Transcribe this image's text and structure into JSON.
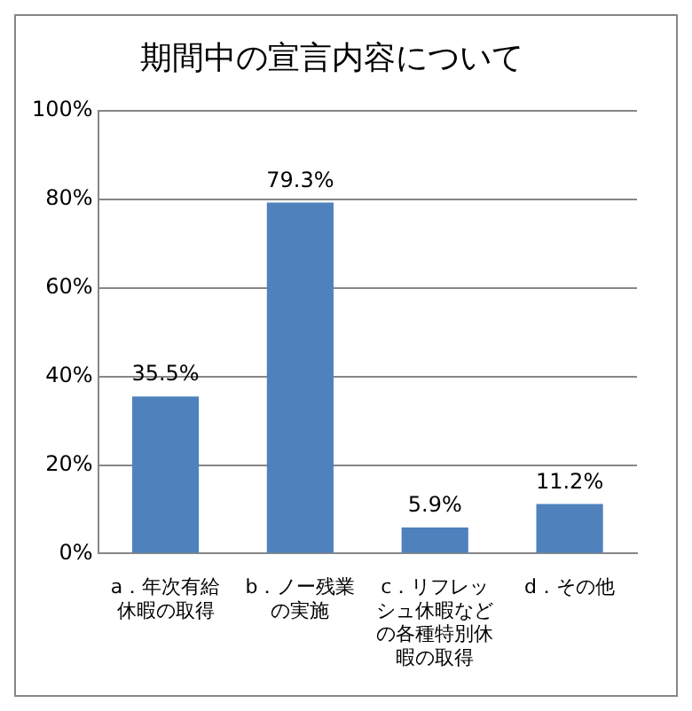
{
  "chart_data": {
    "type": "bar",
    "title": "期間中の宣言内容について",
    "categories": [
      "a．年次有給休暇の取得",
      "b．ノー残業の実施",
      "c．リフレッシュ休暇などの各種特別休暇の取得",
      "d．その他"
    ],
    "values": [
      35.5,
      79.3,
      5.9,
      11.2
    ],
    "value_labels": [
      "35.5%",
      "79.3%",
      "5.9%",
      "11.2%"
    ],
    "color": "#4f81bd",
    "ylim": [
      0,
      100
    ],
    "yticks": [
      {
        "value": 0,
        "label": "0%"
      },
      {
        "value": 20,
        "label": "20%"
      },
      {
        "value": 40,
        "label": "40%"
      },
      {
        "value": 60,
        "label": "60%"
      },
      {
        "value": 80,
        "label": "80%"
      },
      {
        "value": 100,
        "label": "100%"
      }
    ],
    "grid": "y",
    "legend": false
  }
}
